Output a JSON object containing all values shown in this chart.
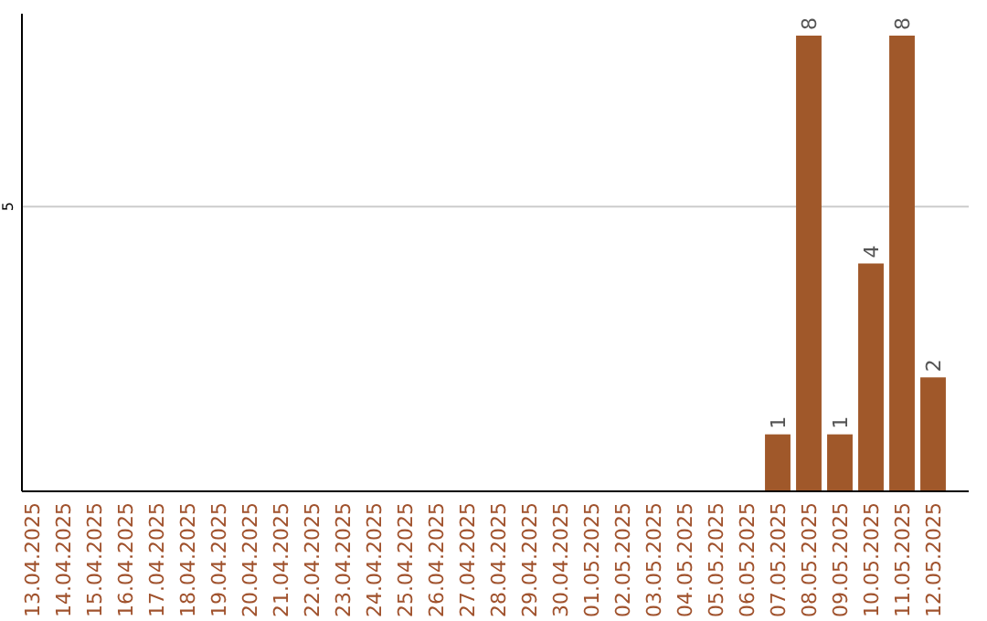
{
  "chart_data": {
    "type": "bar",
    "categories": [
      "13.04.2025",
      "14.04.2025",
      "15.04.2025",
      "16.04.2025",
      "17.04.2025",
      "18.04.2025",
      "19.04.2025",
      "20.04.2025",
      "21.04.2025",
      "22.04.2025",
      "23.04.2025",
      "24.04.2025",
      "25.04.2025",
      "26.04.2025",
      "27.04.2025",
      "28.04.2025",
      "29.04.2025",
      "30.04.2025",
      "01.05.2025",
      "02.05.2025",
      "03.05.2025",
      "04.05.2025",
      "05.05.2025",
      "06.05.2025",
      "07.05.2025",
      "08.05.2025",
      "09.05.2025",
      "10.05.2025",
      "11.05.2025",
      "12.05.2025"
    ],
    "values": [
      null,
      null,
      null,
      null,
      null,
      null,
      null,
      null,
      null,
      null,
      null,
      null,
      null,
      null,
      null,
      null,
      null,
      null,
      null,
      null,
      null,
      null,
      null,
      null,
      1,
      8,
      1,
      4,
      8,
      2
    ],
    "value_labels": [
      null,
      null,
      null,
      null,
      null,
      null,
      null,
      null,
      null,
      null,
      null,
      null,
      null,
      null,
      null,
      null,
      null,
      null,
      null,
      null,
      null,
      null,
      null,
      null,
      "1",
      "8",
      "1",
      "4",
      "8",
      "2"
    ],
    "color": "#a0582a",
    "ylim": [
      0,
      8
    ],
    "yticks": [
      5
    ],
    "grid": "y"
  }
}
